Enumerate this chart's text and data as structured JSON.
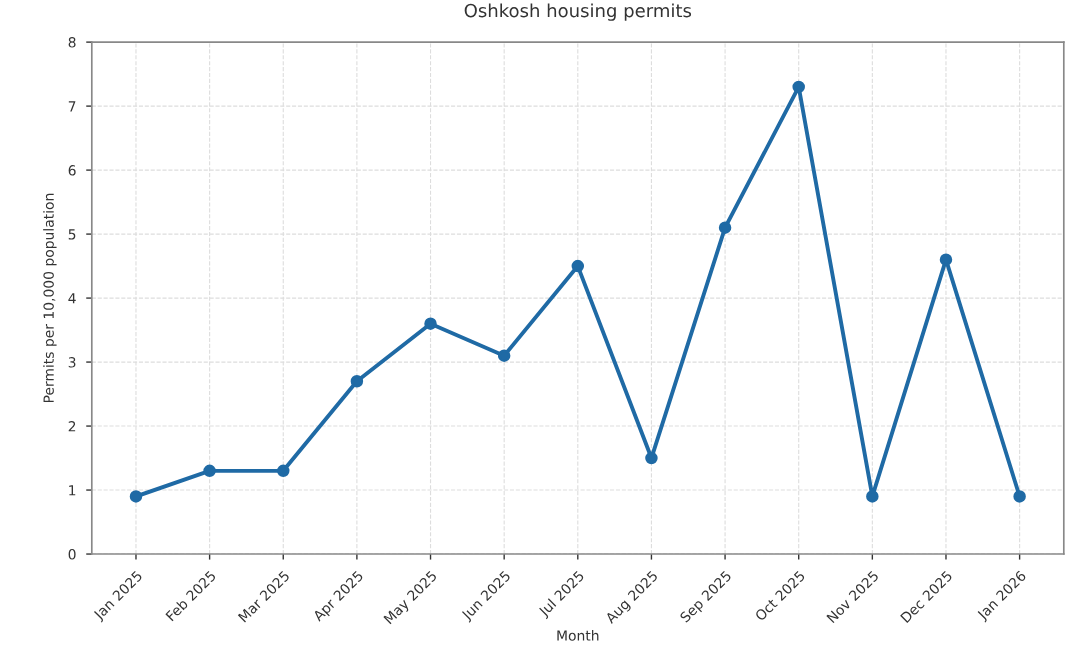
{
  "chart_data": {
    "type": "line",
    "title": "Oshkosh housing permits",
    "xlabel": "Month",
    "ylabel": "Permits per 10,000 population",
    "categories": [
      "Jan 2025",
      "Feb 2025",
      "Mar 2025",
      "Apr 2025",
      "May 2025",
      "Jun 2025",
      "Jul 2025",
      "Aug 2025",
      "Sep 2025",
      "Oct 2025",
      "Nov 2025",
      "Dec 2025",
      "Jan 2026"
    ],
    "series": [
      {
        "color": "#1f6aa5",
        "values": [
          0.9,
          1.3,
          1.3,
          2.7,
          3.6,
          3.1,
          4.5,
          1.5,
          5.1,
          7.3,
          0.9,
          4.6,
          0.9
        ]
      }
    ],
    "ylim": [
      0,
      8
    ],
    "yticks": [
      0,
      1,
      2,
      3,
      4,
      5,
      6,
      7,
      8
    ],
    "grid": true,
    "marker": "circle",
    "line_style": "solid"
  }
}
